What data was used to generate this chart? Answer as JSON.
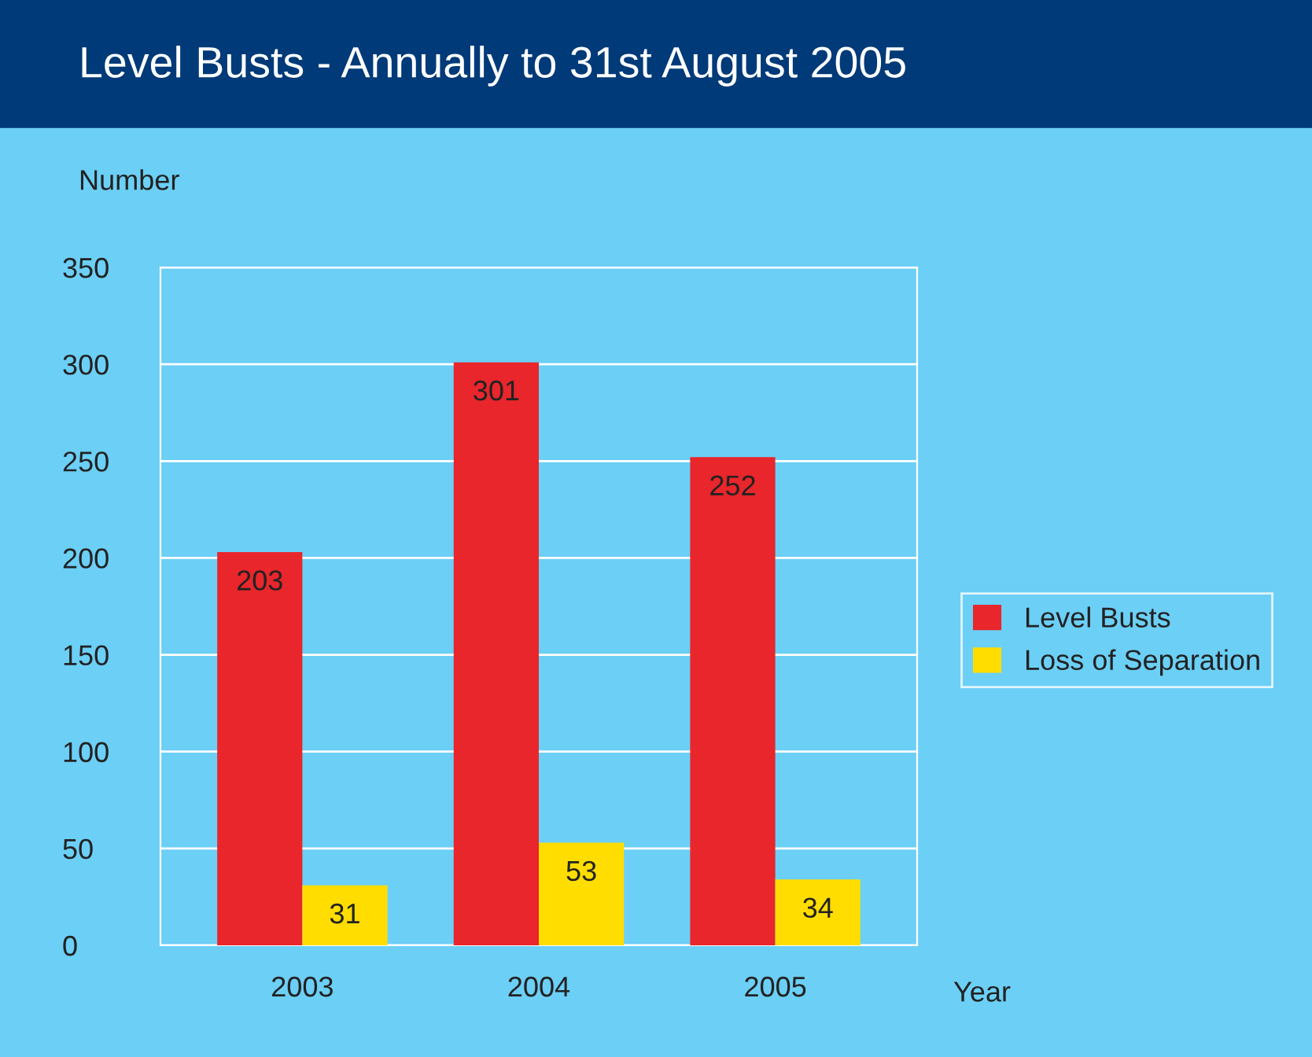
{
  "chart_data": {
    "type": "bar",
    "title": "Level Busts - Annually to 31st August 2005",
    "xlabel": "Year",
    "ylabel": "Number",
    "categories": [
      "2003",
      "2004",
      "2005"
    ],
    "series": [
      {
        "name": "Level Busts",
        "color": "#e8262b",
        "values": [
          203,
          301,
          252
        ]
      },
      {
        "name": "Loss of Separation",
        "color": "#ffdd00",
        "values": [
          31,
          53,
          34
        ]
      }
    ],
    "ylim": [
      0,
      350
    ],
    "yticks": [
      0,
      50,
      100,
      150,
      200,
      250,
      300,
      350
    ],
    "grid": "y",
    "legend": "right",
    "data_labels": true
  }
}
